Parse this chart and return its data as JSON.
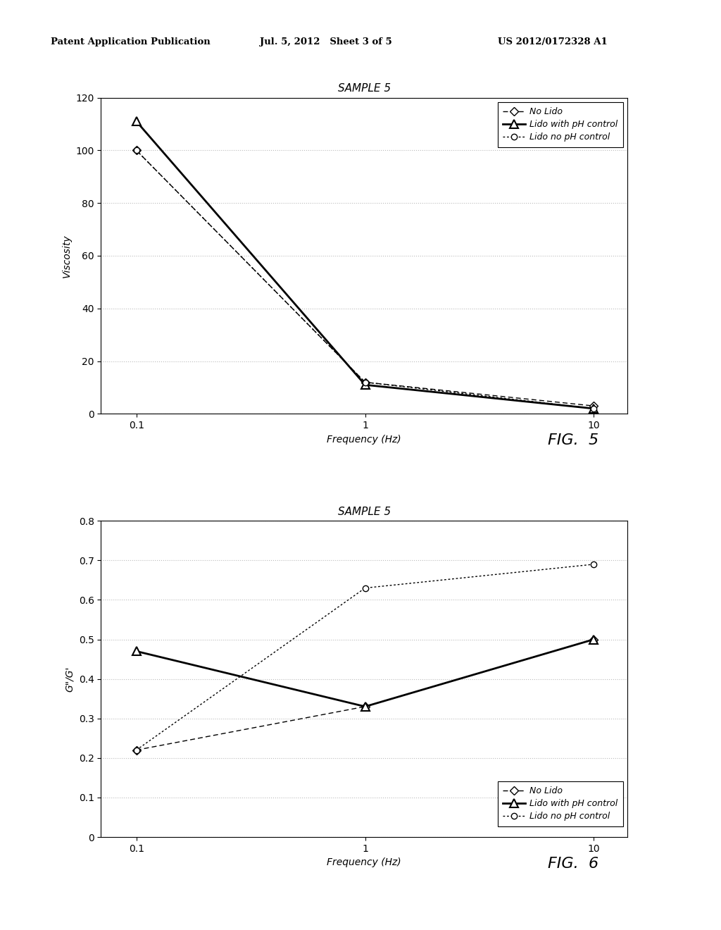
{
  "fig5": {
    "title": "SAMPLE 5",
    "xlabel": "Frequency (Hz)",
    "ylabel": "Viscosity",
    "x": [
      0.1,
      1,
      10
    ],
    "no_lido": [
      100,
      12,
      3
    ],
    "lido_ph": [
      111,
      11,
      2
    ],
    "lido_no_ph": [
      100,
      12,
      2
    ],
    "ylim": [
      0,
      120
    ],
    "yticks": [
      0,
      20,
      40,
      60,
      80,
      100,
      120
    ],
    "xticks": [
      0.1,
      1,
      10
    ],
    "fig_label": "FIG.  5"
  },
  "fig6": {
    "title": "SAMPLE 5",
    "xlabel": "Frequency (Hz)",
    "ylabel": "G\"/G'",
    "x": [
      0.1,
      1,
      10
    ],
    "no_lido": [
      0.22,
      0.33,
      0.5
    ],
    "lido_ph": [
      0.47,
      0.33,
      0.5
    ],
    "lido_no_ph": [
      0.22,
      0.63,
      0.69
    ],
    "ylim": [
      0,
      0.8
    ],
    "yticks": [
      0,
      0.1,
      0.2,
      0.3,
      0.4,
      0.5,
      0.6,
      0.7,
      0.8
    ],
    "xticks": [
      0.1,
      1,
      10
    ],
    "fig_label": "FIG.  6"
  },
  "legend_labels": [
    "No Lido",
    "Lido with pH control",
    "Lido no pH control"
  ],
  "header_left": "Patent Application Publication",
  "header_center": "Jul. 5, 2012   Sheet 3 of 5",
  "header_right": "US 2012/0172328 A1",
  "bg_color": "#ffffff",
  "line_color": "#000000",
  "grid_color": "#bbbbbb"
}
